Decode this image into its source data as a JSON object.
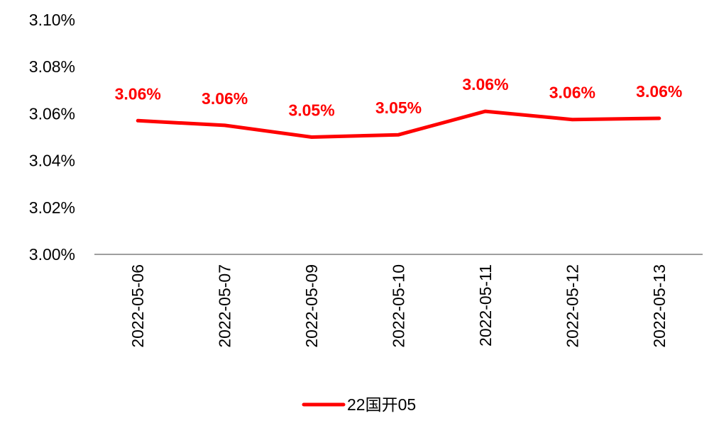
{
  "chart_data": {
    "type": "line",
    "title": "",
    "xlabel": "",
    "ylabel": "",
    "categories": [
      "2022-05-06",
      "2022-05-07",
      "2022-05-09",
      "2022-05-10",
      "2022-05-11",
      "2022-05-12",
      "2022-05-13"
    ],
    "series": [
      {
        "name": "22国开05",
        "values": [
          3.057,
          3.055,
          3.05,
          3.051,
          3.061,
          3.0575,
          3.058
        ],
        "labels": [
          "3.06%",
          "3.06%",
          "3.05%",
          "3.05%",
          "3.06%",
          "3.06%",
          "3.06%"
        ],
        "color": "#ff0000"
      }
    ],
    "ylim": [
      3.0,
      3.1
    ],
    "yticks": [
      3.0,
      3.02,
      3.04,
      3.06,
      3.08,
      3.1
    ],
    "ytick_labels": [
      "3.00%",
      "3.02%",
      "3.04%",
      "3.06%",
      "3.08%",
      "3.10%"
    ],
    "grid": false,
    "legend_position": "bottom-center",
    "axis_color": "#7f7f7f",
    "text_color": "#000000"
  }
}
